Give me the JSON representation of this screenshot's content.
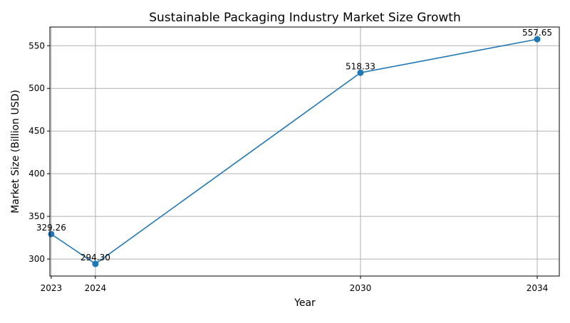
{
  "chart_data": {
    "type": "line",
    "title": "Sustainable Packaging Industry Market Size Growth",
    "xlabel": "Year",
    "ylabel": "Market Size (Billion USD)",
    "x": [
      2023,
      2024,
      2030,
      2034
    ],
    "xticks": [
      "2023",
      "2024",
      "2030",
      "2034"
    ],
    "yticks": [
      "300",
      "350",
      "400",
      "450",
      "500",
      "550"
    ],
    "xlim": [
      2022.97,
      2034.5
    ],
    "ylim": [
      280.04,
      571.91
    ],
    "grid": true,
    "series": [
      {
        "values": [
          329.26,
          294.3,
          518.33,
          557.65
        ],
        "labels": [
          "329.26",
          "294.30",
          "518.33",
          "557.65"
        ],
        "color": "#1f77b4",
        "marker": "circle"
      }
    ]
  }
}
